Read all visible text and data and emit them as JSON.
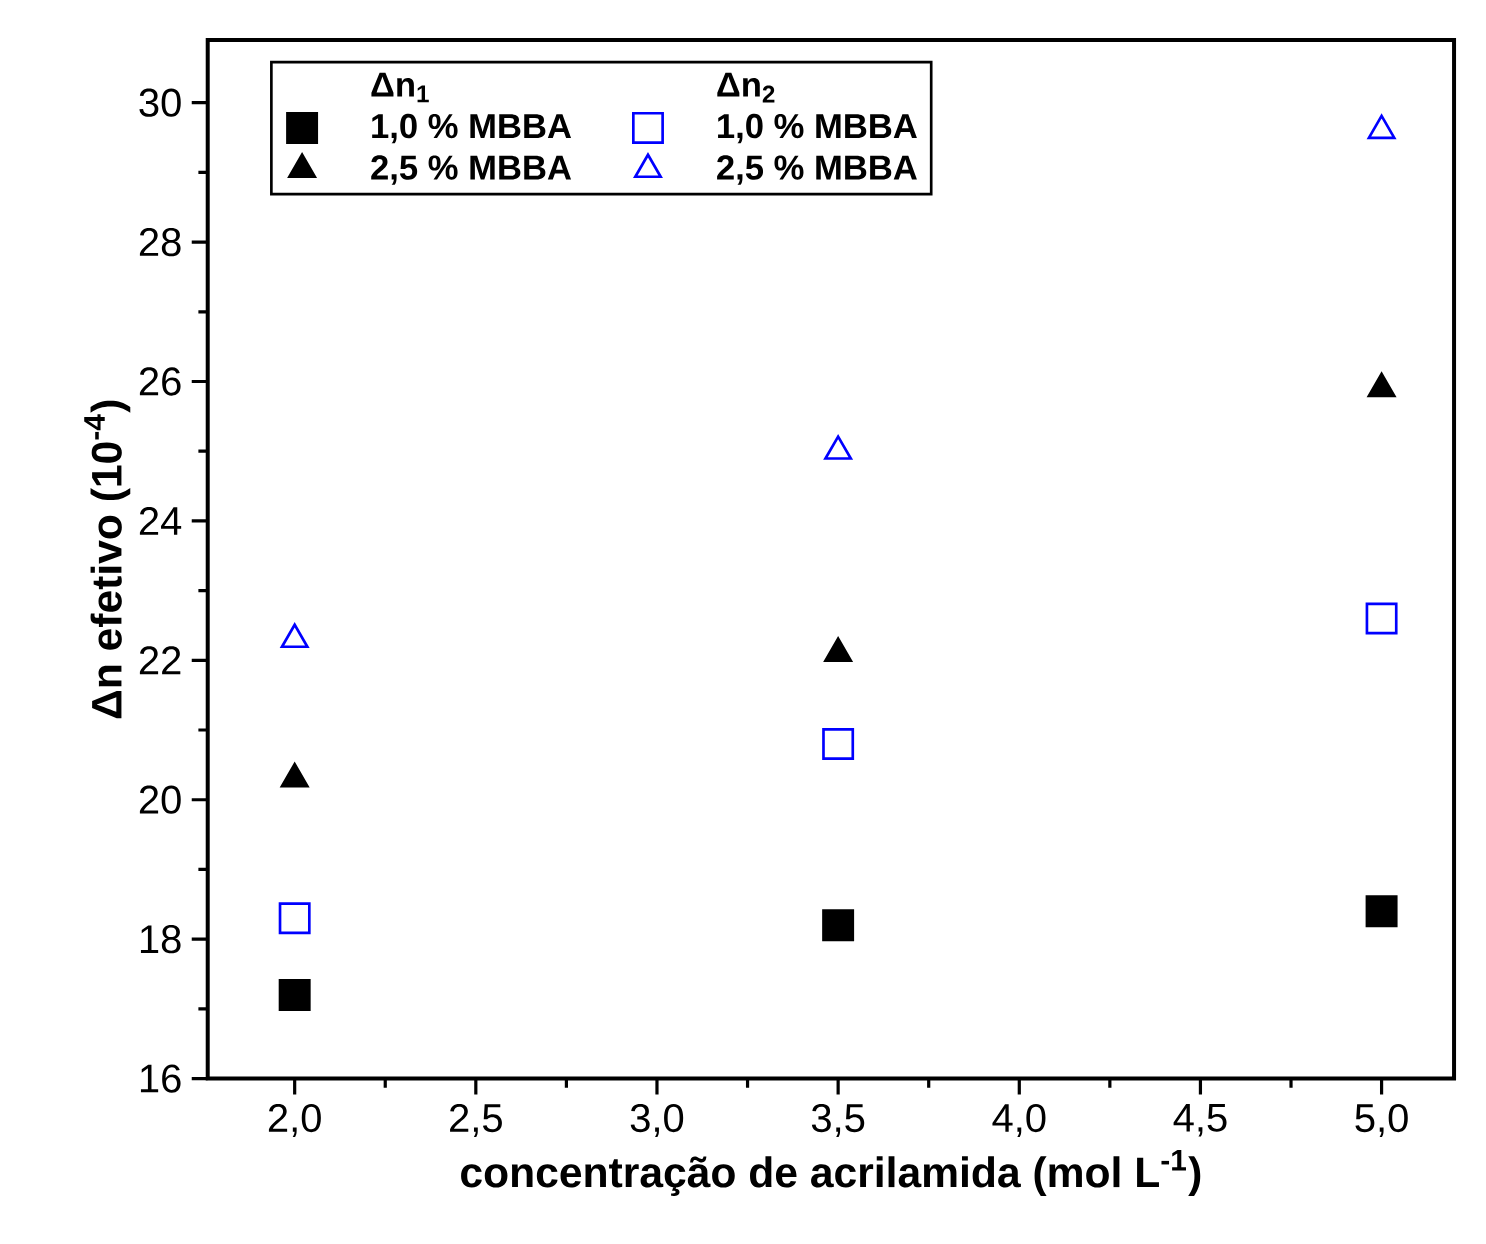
{
  "chart_data": {
    "type": "scatter",
    "xlabel": "concentração de acrilamida (mol L$^{-1}$)",
    "ylabel": "Δn efetivo (10$^{-4}$)",
    "annotations": [
      "Δn$_{1}$",
      "Δn$_{2}$"
    ],
    "x": [
      2.0,
      3.5,
      5.0
    ],
    "series": [
      {
        "name": "1,0 % MBBA",
        "color": "#000000",
        "marker": "square",
        "values": [
          17.2,
          18.2,
          18.4
        ]
      },
      {
        "name": "2,5 % MBBA",
        "color": "#000000",
        "marker": "triangle",
        "values": [
          20.3,
          22.1,
          25.9
        ]
      },
      {
        "name": "1,0 % MBBA",
        "color": "#0000ff",
        "marker": "square-open",
        "values": [
          18.3,
          20.8,
          22.6
        ]
      },
      {
        "name": "2,5 % MBBA",
        "color": "#0000ff",
        "marker": "triangle-open",
        "values": [
          22.3,
          25.0,
          29.6
        ]
      }
    ],
    "xlim": [
      1.76,
      5.2
    ],
    "ylim": [
      16,
      30.9
    ],
    "xticks": [
      {
        "value": 2,
        "label": "2,0"
      },
      {
        "value": 2.5,
        "label": "2,5"
      },
      {
        "value": 3,
        "label": "3,0"
      },
      {
        "value": 3.5,
        "label": "3,5"
      },
      {
        "value": 4,
        "label": "4,0"
      },
      {
        "value": 4.5,
        "label": "4,5"
      },
      {
        "value": 5,
        "label": "5,0"
      }
    ],
    "yticks": [
      16,
      18,
      20,
      22,
      24,
      26,
      28,
      30
    ],
    "grid": false,
    "legend": "top"
  }
}
